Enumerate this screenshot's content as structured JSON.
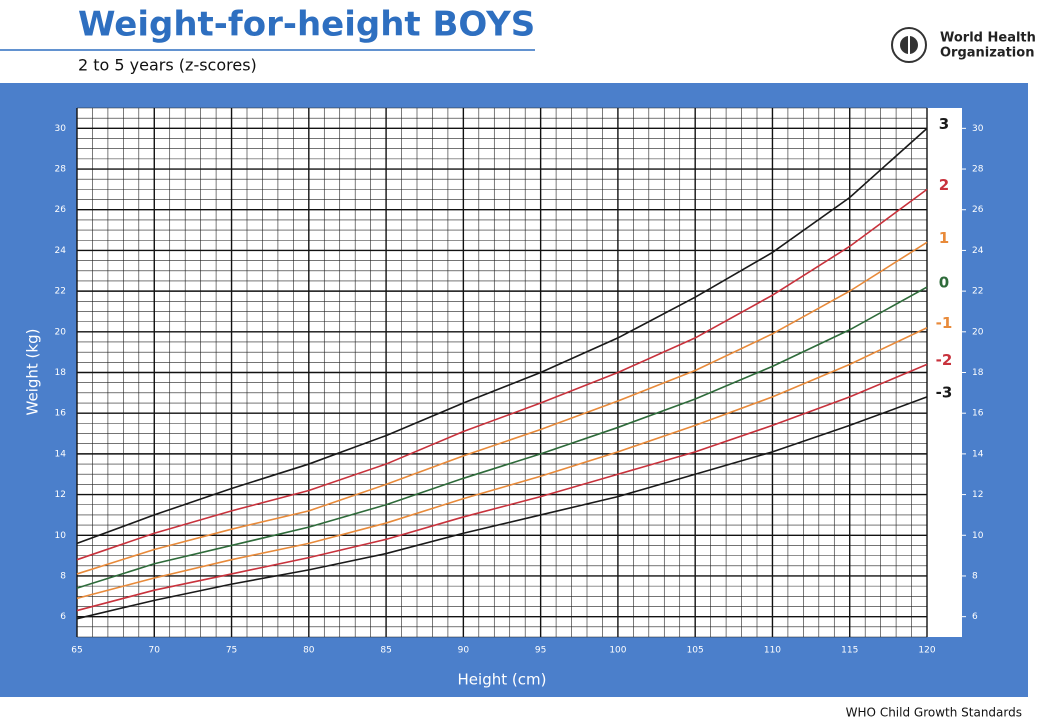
{
  "header": {
    "title": "Weight-for-height BOYS",
    "subtitle": "2 to 5 years (z-scores)",
    "logo_line1": "World Health",
    "logo_line2": "Organization"
  },
  "footer": "WHO Child Growth Standards",
  "chart_data": {
    "type": "line",
    "x_label": "Height (cm)",
    "y_label": "Weight (kg)",
    "x": [
      65,
      70,
      75,
      80,
      85,
      90,
      95,
      100,
      105,
      110,
      115,
      120
    ],
    "xlim": [
      65,
      120
    ],
    "xticks": [
      65,
      70,
      75,
      80,
      85,
      90,
      95,
      100,
      105,
      110,
      115,
      120
    ],
    "ylim": [
      5,
      31
    ],
    "yticks": [
      6,
      8,
      10,
      12,
      14,
      16,
      18,
      20,
      22,
      24,
      26,
      28,
      30
    ],
    "y2lim": [
      5,
      31
    ],
    "y2ticks": [
      6,
      8,
      10,
      12,
      14,
      16,
      18,
      20,
      22,
      24,
      26,
      28,
      30
    ],
    "grid": true,
    "series": [
      {
        "name": "3",
        "color": "#1a1a1a",
        "values": [
          9.6,
          11.0,
          12.3,
          13.5,
          14.9,
          16.5,
          18.0,
          19.7,
          21.7,
          23.9,
          26.6,
          30.0
        ]
      },
      {
        "name": "2",
        "color": "#c8323c",
        "values": [
          8.8,
          10.1,
          11.2,
          12.2,
          13.5,
          15.1,
          16.5,
          18.0,
          19.7,
          21.8,
          24.2,
          27.0
        ]
      },
      {
        "name": "1",
        "color": "#e88a3a",
        "values": [
          8.1,
          9.3,
          10.3,
          11.2,
          12.5,
          13.9,
          15.2,
          16.6,
          18.1,
          19.9,
          22.0,
          24.4
        ]
      },
      {
        "name": "0",
        "color": "#2e6b3a",
        "values": [
          7.4,
          8.6,
          9.5,
          10.4,
          11.5,
          12.8,
          14.0,
          15.3,
          16.7,
          18.3,
          20.1,
          22.2
        ]
      },
      {
        "name": "-1",
        "color": "#e88a3a",
        "values": [
          6.9,
          7.9,
          8.8,
          9.6,
          10.6,
          11.8,
          12.9,
          14.1,
          15.4,
          16.8,
          18.4,
          20.2
        ]
      },
      {
        "name": "-2",
        "color": "#c8323c",
        "values": [
          6.3,
          7.3,
          8.1,
          8.9,
          9.8,
          10.9,
          11.9,
          13.0,
          14.1,
          15.4,
          16.8,
          18.4
        ]
      },
      {
        "name": "-3",
        "color": "#1a1a1a",
        "values": [
          5.9,
          6.8,
          7.6,
          8.3,
          9.1,
          10.1,
          11.0,
          11.9,
          13.0,
          14.1,
          15.4,
          16.8
        ]
      }
    ]
  }
}
